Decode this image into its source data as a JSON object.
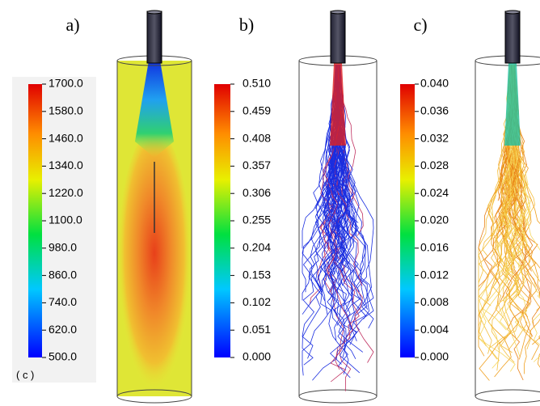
{
  "panels": [
    {
      "label": "a)",
      "ticks": [
        "1700.0",
        "1580.0",
        "1460.0",
        "1340.0",
        "1220.0",
        "1100.0",
        "980.0",
        "860.0",
        "740.0",
        "620.0",
        "500.0"
      ],
      "unit": "( c )"
    },
    {
      "label": "b)",
      "ticks": [
        "0.510",
        "0.459",
        "0.408",
        "0.357",
        "0.306",
        "0.255",
        "0.204",
        "0.153",
        "0.102",
        "0.051",
        "0.000"
      ]
    },
    {
      "label": "c)",
      "ticks": [
        "0.040",
        "0.036",
        "0.032",
        "0.028",
        "0.024",
        "0.020",
        "0.016",
        "0.012",
        "0.008",
        "0.004",
        "0.000"
      ]
    }
  ]
}
